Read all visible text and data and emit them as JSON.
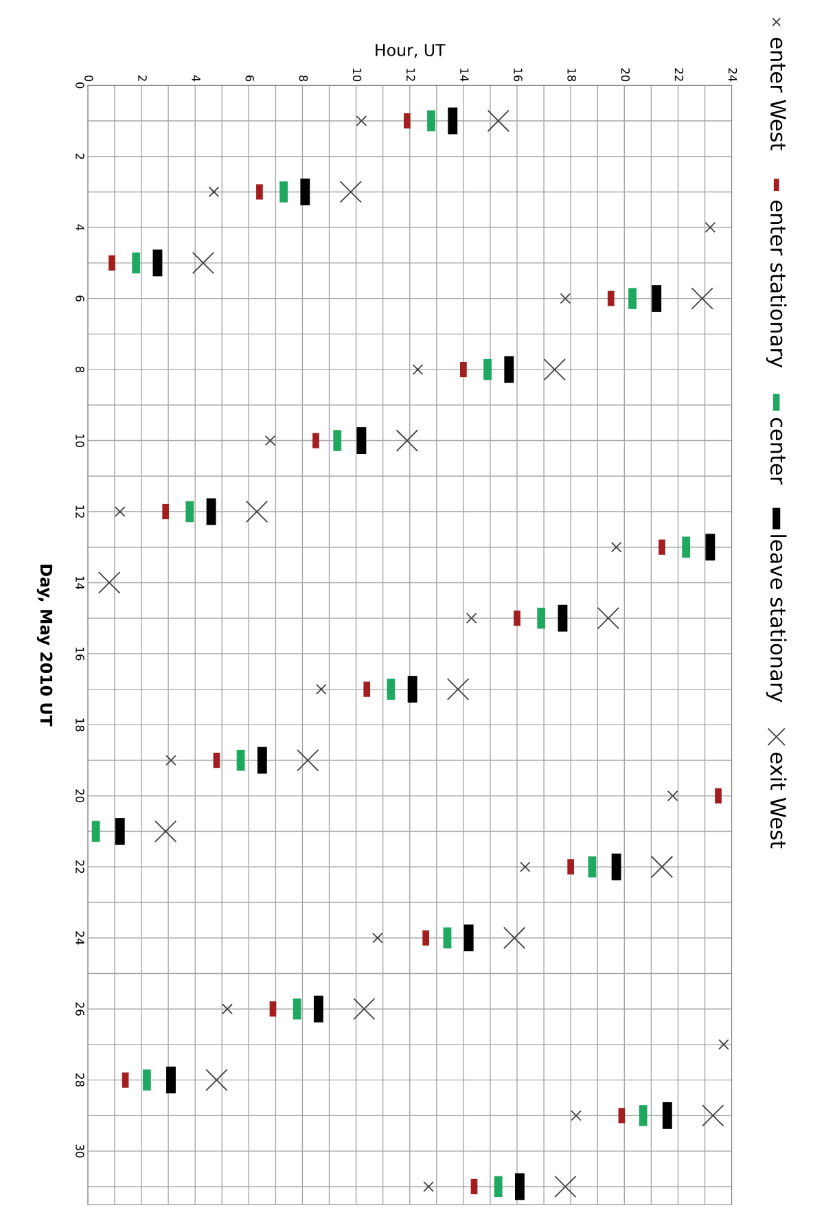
{
  "chart_data": {
    "type": "scatter",
    "xlabel": "Hour, UT",
    "ylabel": "Day, May 2010 UT",
    "xlim": [
      0,
      24
    ],
    "ylim": [
      31.5,
      0
    ],
    "xticks": [
      0,
      {
        "value": 1,
        "label": null
      },
      2,
      {
        "value": 3,
        "label": null
      },
      4,
      {
        "value": 5,
        "label": null
      },
      6,
      {
        "value": 7,
        "label": null
      },
      8,
      {
        "value": 9,
        "label": null
      },
      10,
      {
        "value": 11,
        "label": null
      },
      12,
      {
        "value": 13,
        "label": null
      },
      14,
      {
        "value": 15,
        "label": null
      },
      16,
      {
        "value": 17,
        "label": null
      },
      18,
      {
        "value": 19,
        "label": null
      },
      20,
      {
        "value": 21,
        "label": null
      },
      22,
      {
        "value": 23,
        "label": null
      },
      24
    ],
    "yticks": [
      0,
      {
        "value": 1,
        "label": null
      },
      2,
      {
        "value": 3,
        "label": null
      },
      4,
      {
        "value": 5,
        "label": null
      },
      6,
      {
        "value": 7,
        "label": null
      },
      8,
      {
        "value": 9,
        "label": null
      },
      10,
      {
        "value": 11,
        "label": null
      },
      12,
      {
        "value": 13,
        "label": null
      },
      14,
      {
        "value": 15,
        "label": null
      },
      16,
      {
        "value": 17,
        "label": null
      },
      18,
      {
        "value": 19,
        "label": null
      },
      20,
      {
        "value": 21,
        "label": null
      },
      22,
      {
        "value": 23,
        "label": null
      },
      24,
      {
        "value": 25,
        "label": null
      },
      26,
      {
        "value": 27,
        "label": null
      },
      28,
      {
        "value": 29,
        "label": null
      },
      30,
      {
        "value": 31,
        "label": null
      }
    ],
    "grid": true,
    "legend": "right",
    "series": [
      {
        "name": "enter West",
        "color": "#404040",
        "marker": "cross",
        "x": [
          10.2,
          4.7,
          23.2,
          17.8,
          12.3,
          6.8,
          1.2,
          19.7,
          14.3,
          8.7,
          3.1,
          21.8,
          16.3,
          10.8,
          5.2,
          23.7,
          18.2,
          12.7
        ],
        "values": [
          1,
          3,
          4,
          6,
          8,
          10,
          12,
          13,
          15,
          17,
          19,
          20,
          22,
          24,
          26,
          27,
          29,
          31
        ]
      },
      {
        "name": "enter stationary",
        "color": "#a31f1f",
        "x": [
          11.9,
          6.4,
          0.9,
          19.5,
          14.0,
          8.5,
          2.9,
          21.4,
          16.0,
          10.4,
          4.8,
          23.5,
          18.0,
          12.6,
          6.9,
          1.4,
          19.9,
          14.4
        ],
        "values": [
          1,
          3,
          5,
          6,
          8,
          10,
          12,
          13,
          15,
          17,
          19,
          20,
          22,
          24,
          26,
          28,
          29,
          31
        ]
      },
      {
        "name": "center",
        "color": "#1fa860",
        "x": [
          12.8,
          7.3,
          1.8,
          20.3,
          14.9,
          9.3,
          3.8,
          22.3,
          16.9,
          11.3,
          5.7,
          0.3,
          18.8,
          13.4,
          7.8,
          2.2,
          20.7,
          15.3
        ],
        "values": [
          1,
          3,
          5,
          6,
          8,
          10,
          12,
          13,
          15,
          17,
          19,
          21,
          22,
          24,
          26,
          28,
          29,
          31
        ]
      },
      {
        "name": "leave stationary",
        "color": "#000000",
        "x": [
          13.6,
          8.1,
          2.6,
          21.2,
          15.7,
          10.2,
          4.6,
          23.2,
          17.7,
          12.1,
          6.5,
          1.2,
          19.7,
          14.2,
          8.6,
          3.1,
          21.6,
          16.1
        ],
        "values": [
          1,
          3,
          5,
          6,
          8,
          10,
          12,
          13,
          15,
          17,
          19,
          21,
          22,
          24,
          26,
          28,
          29,
          31
        ]
      },
      {
        "name": "exit West",
        "color": "#404040",
        "marker": "cross",
        "x": [
          15.3,
          9.8,
          4.3,
          22.9,
          17.4,
          11.9,
          6.3,
          0.8,
          19.4,
          13.8,
          8.2,
          2.9,
          21.4,
          15.9,
          10.3,
          4.8,
          23.3,
          17.8
        ],
        "values": [
          1,
          3,
          5,
          6,
          8,
          10,
          12,
          14,
          15,
          17,
          19,
          21,
          22,
          24,
          26,
          28,
          29,
          31
        ]
      }
    ]
  }
}
